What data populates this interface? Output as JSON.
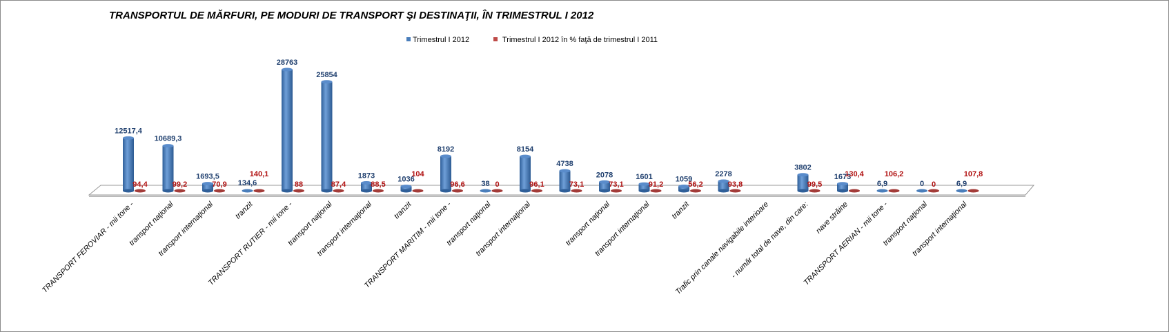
{
  "chart_data": {
    "type": "bar",
    "title": "TRANSPORTUL DE MĂRFURI, PE MODURI DE TRANSPORT ŞI DESTINAŢII, ÎN TRIMESTRUL I 2012",
    "xlabel": "",
    "ylabel": "",
    "ylim": [
      0,
      30000
    ],
    "grid": false,
    "legend_position": "top-right",
    "colors": {
      "blue": "#4a7ebb",
      "red": "#be4b48"
    },
    "categories": [
      "TRANSPORT FEROVIAR - mii tone -",
      "transport naţional",
      "transport internaţional",
      "tranzit",
      "TRANSPORT RUTIER - mii tone -",
      "transport naţional",
      "transport internaţional",
      "tranzit",
      "TRANSPORT MARITIM - mii tone -",
      "transport naţional",
      "transport internaţional",
      "",
      "transport naţional",
      "transport internaţional",
      "tranzit",
      "",
      "Trafic prin canale navigabile interioare",
      "- număr total de nave, din care:",
      "nave străine",
      "TRANSPORT AERIAN - mii tone -",
      "transport naţional",
      "transport internaţional"
    ],
    "series": [
      {
        "name": "Trimestrul I 2012",
        "values": [
          12517.4,
          10689.3,
          1693.5,
          134.6,
          28763,
          25854,
          1873,
          1036,
          8192,
          38,
          8154,
          4738,
          2078,
          1601,
          1059,
          2278,
          null,
          3802,
          1673,
          6.9,
          0,
          6.9
        ],
        "labels": [
          "12517,4",
          "10689,3",
          "1693,5",
          "134,6",
          "28763",
          "25854",
          "1873",
          "1036",
          "8192",
          "38",
          "8154",
          "4738",
          "2078",
          "1601",
          "1059",
          "2278",
          "",
          "3802",
          "1673",
          "6,9",
          "0",
          "6,9"
        ]
      },
      {
        "name": "Trimestrul I 2012 în % faţă de trimestrul I 2011",
        "values": [
          94.4,
          99.2,
          70.9,
          140.1,
          88,
          87.4,
          88.5,
          104,
          96.6,
          0,
          96.1,
          73.1,
          73.1,
          91.2,
          56.2,
          93.8,
          null,
          99.5,
          130.4,
          106.2,
          0,
          107.8
        ],
        "labels": [
          "94,4",
          "99,2",
          "70,9",
          "140,1",
          "88",
          "87,4",
          "88,5",
          "104",
          "96,6",
          "0",
          "96,1",
          "73,1",
          "73,1",
          "91,2",
          "56,2",
          "93,8",
          "",
          "99,5",
          "130,4",
          "106,2",
          "0",
          "107,8"
        ]
      }
    ]
  }
}
